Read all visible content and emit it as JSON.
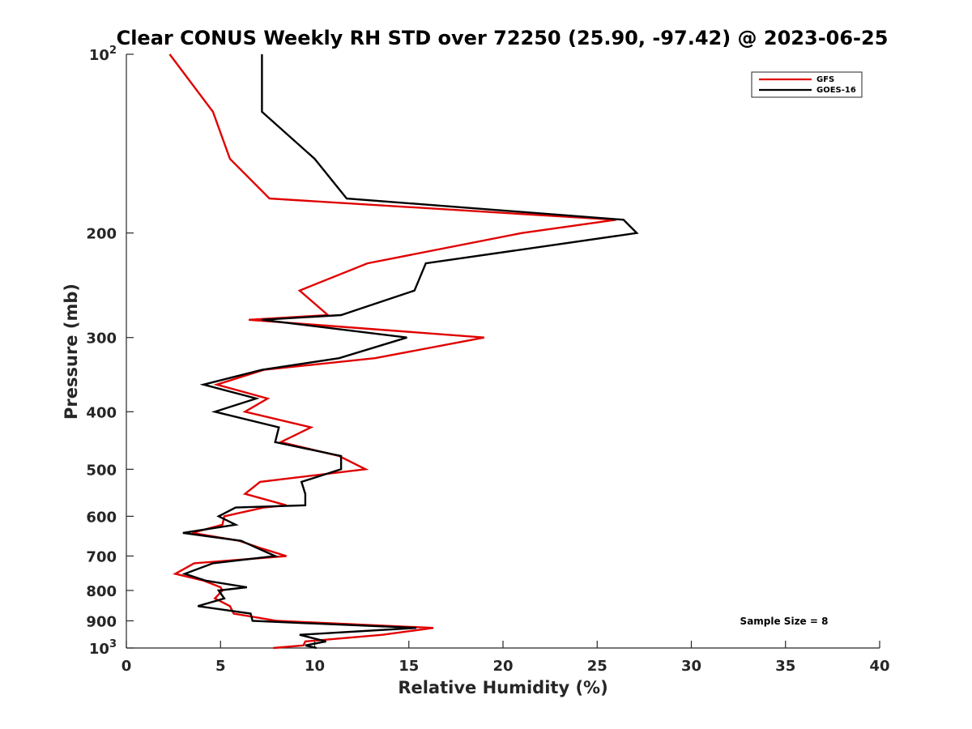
{
  "chart_data": {
    "type": "line",
    "title": "Clear CONUS Weekly RH STD over 72250 (25.90, -97.42) @ 2023-06-25",
    "xlabel": "Relative Humidity (%)",
    "ylabel": "Pressure (mb)",
    "xlim": [
      0,
      40
    ],
    "ylim": [
      100,
      1000
    ],
    "y_scale": "log",
    "y_reversed": true,
    "x_ticks": [
      0,
      5,
      10,
      15,
      20,
      25,
      30,
      35,
      40
    ],
    "x_tick_labels": [
      "0",
      "5",
      "10",
      "15",
      "20",
      "25",
      "30",
      "35",
      "40"
    ],
    "y_ticks": [
      {
        "value": 100,
        "base": "10",
        "exp": "2"
      },
      {
        "value": 200,
        "label": "200"
      },
      {
        "value": 300,
        "label": "300"
      },
      {
        "value": 400,
        "label": "400"
      },
      {
        "value": 500,
        "label": "500"
      },
      {
        "value": 600,
        "label": "600"
      },
      {
        "value": 700,
        "label": "700"
      },
      {
        "value": 800,
        "label": "800"
      },
      {
        "value": 900,
        "label": "900"
      },
      {
        "value": 1000,
        "base": "10",
        "exp": "3"
      }
    ],
    "legend_position": "top-right",
    "grid": false,
    "annotation": "Sample Size = 8",
    "series": [
      {
        "name": "GFS",
        "color": "#e00000",
        "points": [
          [
            2.3,
            100
          ],
          [
            4.6,
            125
          ],
          [
            5.5,
            150
          ],
          [
            7.6,
            175
          ],
          [
            26.0,
            190
          ],
          [
            21.0,
            200
          ],
          [
            12.8,
            225
          ],
          [
            9.2,
            250
          ],
          [
            10.7,
            275
          ],
          [
            6.5,
            280
          ],
          [
            19.0,
            300
          ],
          [
            13.2,
            325
          ],
          [
            7.3,
            340
          ],
          [
            4.8,
            360
          ],
          [
            7.5,
            380
          ],
          [
            6.3,
            400
          ],
          [
            9.8,
            425
          ],
          [
            8.2,
            450
          ],
          [
            11.3,
            475
          ],
          [
            12.7,
            500
          ],
          [
            7.1,
            525
          ],
          [
            6.3,
            550
          ],
          [
            8.5,
            575
          ],
          [
            7.3,
            580
          ],
          [
            5.2,
            600
          ],
          [
            5.1,
            620
          ],
          [
            3.5,
            640
          ],
          [
            6.0,
            660
          ],
          [
            7.2,
            680
          ],
          [
            8.5,
            700
          ],
          [
            3.6,
            720
          ],
          [
            2.6,
            750
          ],
          [
            4.1,
            770
          ],
          [
            5.0,
            790
          ],
          [
            5.1,
            800
          ],
          [
            4.7,
            825
          ],
          [
            5.5,
            850
          ],
          [
            5.7,
            875
          ],
          [
            8.0,
            900
          ],
          [
            16.3,
            925
          ],
          [
            13.6,
            950
          ],
          [
            9.5,
            975
          ],
          [
            9.4,
            990
          ],
          [
            7.8,
            1000
          ]
        ]
      },
      {
        "name": "GOES-16",
        "color": "#000000",
        "points": [
          [
            7.2,
            100
          ],
          [
            7.2,
            125
          ],
          [
            10.0,
            150
          ],
          [
            11.7,
            175
          ],
          [
            26.4,
            190
          ],
          [
            27.1,
            200
          ],
          [
            15.9,
            225
          ],
          [
            15.3,
            250
          ],
          [
            11.4,
            275
          ],
          [
            7.2,
            280
          ],
          [
            14.9,
            300
          ],
          [
            11.3,
            325
          ],
          [
            7.2,
            340
          ],
          [
            4.1,
            360
          ],
          [
            6.9,
            380
          ],
          [
            4.7,
            400
          ],
          [
            8.1,
            425
          ],
          [
            7.9,
            450
          ],
          [
            11.4,
            475
          ],
          [
            11.4,
            500
          ],
          [
            9.3,
            525
          ],
          [
            9.5,
            550
          ],
          [
            9.5,
            575
          ],
          [
            5.8,
            580
          ],
          [
            4.9,
            600
          ],
          [
            5.8,
            620
          ],
          [
            3.0,
            640
          ],
          [
            6.1,
            660
          ],
          [
            7.0,
            680
          ],
          [
            7.9,
            700
          ],
          [
            4.6,
            720
          ],
          [
            3.1,
            750
          ],
          [
            4.2,
            770
          ],
          [
            6.4,
            790
          ],
          [
            4.9,
            800
          ],
          [
            5.2,
            825
          ],
          [
            3.8,
            850
          ],
          [
            6.6,
            875
          ],
          [
            6.7,
            900
          ],
          [
            15.4,
            925
          ],
          [
            9.2,
            950
          ],
          [
            10.6,
            975
          ],
          [
            9.5,
            990
          ],
          [
            10.1,
            1000
          ]
        ]
      }
    ]
  }
}
